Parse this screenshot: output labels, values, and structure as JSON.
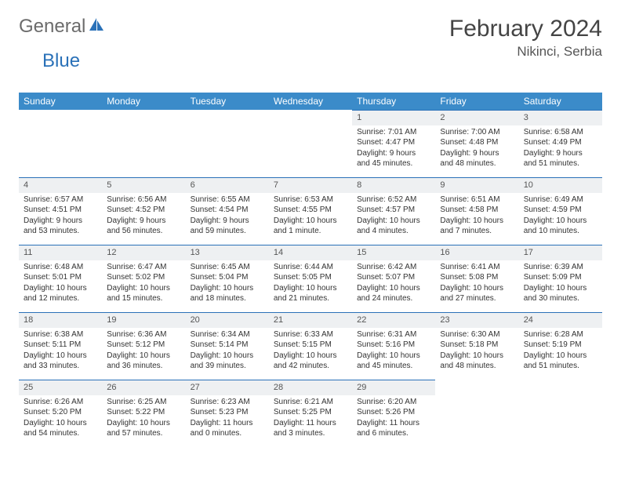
{
  "logo": {
    "part1": "General",
    "part2": "Blue"
  },
  "title": "February 2024",
  "location": "Nikinci, Serbia",
  "dayHeaders": [
    "Sunday",
    "Monday",
    "Tuesday",
    "Wednesday",
    "Thursday",
    "Friday",
    "Saturday"
  ],
  "colors": {
    "headerBg": "#3b8bc9",
    "dayNumBg": "#eef0f2",
    "dayBorder": "#2a71b8",
    "logoGray": "#6b6b6b",
    "logoBlue": "#2a71b8"
  },
  "weeks": [
    [
      null,
      null,
      null,
      null,
      {
        "n": "1",
        "sr": "7:01 AM",
        "ss": "4:47 PM",
        "dl": "9 hours and 45 minutes."
      },
      {
        "n": "2",
        "sr": "7:00 AM",
        "ss": "4:48 PM",
        "dl": "9 hours and 48 minutes."
      },
      {
        "n": "3",
        "sr": "6:58 AM",
        "ss": "4:49 PM",
        "dl": "9 hours and 51 minutes."
      }
    ],
    [
      {
        "n": "4",
        "sr": "6:57 AM",
        "ss": "4:51 PM",
        "dl": "9 hours and 53 minutes."
      },
      {
        "n": "5",
        "sr": "6:56 AM",
        "ss": "4:52 PM",
        "dl": "9 hours and 56 minutes."
      },
      {
        "n": "6",
        "sr": "6:55 AM",
        "ss": "4:54 PM",
        "dl": "9 hours and 59 minutes."
      },
      {
        "n": "7",
        "sr": "6:53 AM",
        "ss": "4:55 PM",
        "dl": "10 hours and 1 minute."
      },
      {
        "n": "8",
        "sr": "6:52 AM",
        "ss": "4:57 PM",
        "dl": "10 hours and 4 minutes."
      },
      {
        "n": "9",
        "sr": "6:51 AM",
        "ss": "4:58 PM",
        "dl": "10 hours and 7 minutes."
      },
      {
        "n": "10",
        "sr": "6:49 AM",
        "ss": "4:59 PM",
        "dl": "10 hours and 10 minutes."
      }
    ],
    [
      {
        "n": "11",
        "sr": "6:48 AM",
        "ss": "5:01 PM",
        "dl": "10 hours and 12 minutes."
      },
      {
        "n": "12",
        "sr": "6:47 AM",
        "ss": "5:02 PM",
        "dl": "10 hours and 15 minutes."
      },
      {
        "n": "13",
        "sr": "6:45 AM",
        "ss": "5:04 PM",
        "dl": "10 hours and 18 minutes."
      },
      {
        "n": "14",
        "sr": "6:44 AM",
        "ss": "5:05 PM",
        "dl": "10 hours and 21 minutes."
      },
      {
        "n": "15",
        "sr": "6:42 AM",
        "ss": "5:07 PM",
        "dl": "10 hours and 24 minutes."
      },
      {
        "n": "16",
        "sr": "6:41 AM",
        "ss": "5:08 PM",
        "dl": "10 hours and 27 minutes."
      },
      {
        "n": "17",
        "sr": "6:39 AM",
        "ss": "5:09 PM",
        "dl": "10 hours and 30 minutes."
      }
    ],
    [
      {
        "n": "18",
        "sr": "6:38 AM",
        "ss": "5:11 PM",
        "dl": "10 hours and 33 minutes."
      },
      {
        "n": "19",
        "sr": "6:36 AM",
        "ss": "5:12 PM",
        "dl": "10 hours and 36 minutes."
      },
      {
        "n": "20",
        "sr": "6:34 AM",
        "ss": "5:14 PM",
        "dl": "10 hours and 39 minutes."
      },
      {
        "n": "21",
        "sr": "6:33 AM",
        "ss": "5:15 PM",
        "dl": "10 hours and 42 minutes."
      },
      {
        "n": "22",
        "sr": "6:31 AM",
        "ss": "5:16 PM",
        "dl": "10 hours and 45 minutes."
      },
      {
        "n": "23",
        "sr": "6:30 AM",
        "ss": "5:18 PM",
        "dl": "10 hours and 48 minutes."
      },
      {
        "n": "24",
        "sr": "6:28 AM",
        "ss": "5:19 PM",
        "dl": "10 hours and 51 minutes."
      }
    ],
    [
      {
        "n": "25",
        "sr": "6:26 AM",
        "ss": "5:20 PM",
        "dl": "10 hours and 54 minutes."
      },
      {
        "n": "26",
        "sr": "6:25 AM",
        "ss": "5:22 PM",
        "dl": "10 hours and 57 minutes."
      },
      {
        "n": "27",
        "sr": "6:23 AM",
        "ss": "5:23 PM",
        "dl": "11 hours and 0 minutes."
      },
      {
        "n": "28",
        "sr": "6:21 AM",
        "ss": "5:25 PM",
        "dl": "11 hours and 3 minutes."
      },
      {
        "n": "29",
        "sr": "6:20 AM",
        "ss": "5:26 PM",
        "dl": "11 hours and 6 minutes."
      },
      null,
      null
    ]
  ],
  "labels": {
    "sunrise": "Sunrise: ",
    "sunset": "Sunset: ",
    "daylight": "Daylight: "
  }
}
